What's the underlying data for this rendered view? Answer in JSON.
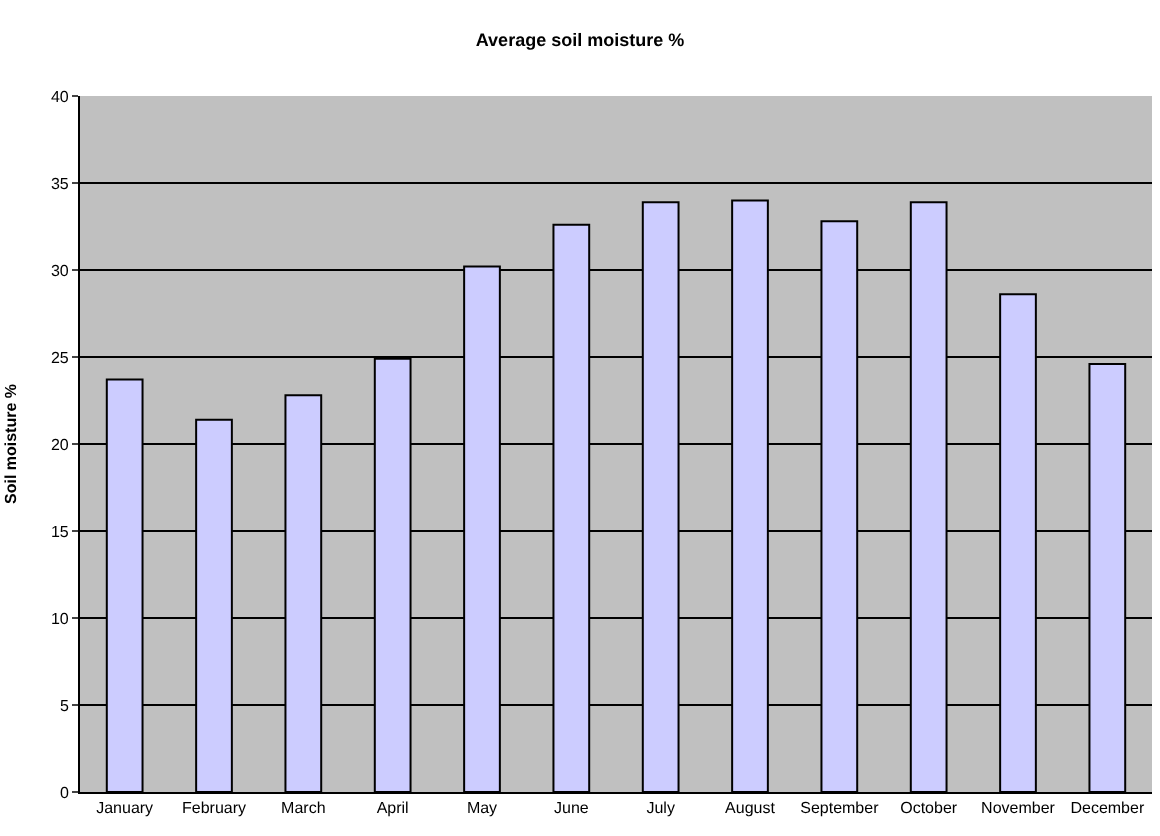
{
  "chart_data": {
    "type": "bar",
    "title": "Average soil moisture %",
    "ylabel": "Soil moisture %",
    "categories": [
      "January",
      "February",
      "March",
      "April",
      "May",
      "June",
      "July",
      "August",
      "September",
      "October",
      "November",
      "December"
    ],
    "values": [
      23.7,
      21.4,
      22.8,
      24.9,
      30.2,
      32.6,
      33.9,
      34.0,
      32.8,
      33.9,
      28.6,
      24.6
    ],
    "color": "#ccccff",
    "ylim": [
      0,
      40
    ],
    "yticks": [
      0,
      5,
      10,
      15,
      20,
      25,
      30,
      35,
      40
    ],
    "grid": "y"
  }
}
